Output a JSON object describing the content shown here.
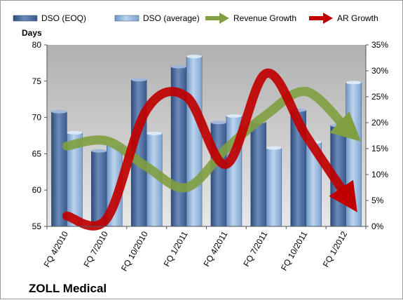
{
  "chart_data": {
    "type": "bar",
    "title": "",
    "caption": "ZOLL Medical",
    "ylabel": "Days",
    "y2label": "",
    "ylim": [
      55,
      80
    ],
    "yticks": [
      "55",
      "60",
      "65",
      "70",
      "75",
      "80"
    ],
    "y2lim": [
      0,
      35
    ],
    "y2ticks": [
      "0%",
      "5%",
      "10%",
      "15%",
      "20%",
      "25%",
      "30%",
      "35%"
    ],
    "categories": [
      "FQ 4/2010",
      "FQ 7/2010",
      "FQ 10/2010",
      "FQ 1/2011",
      "FQ 4/2011",
      "FQ 7/2011",
      "FQ 10/2011",
      "FQ 1/2012"
    ],
    "legend_position": "top",
    "grid": false,
    "series": [
      {
        "name": "DSO (EOQ)",
        "kind": "bar",
        "axis": "left",
        "color": "#4f6f9f",
        "values": [
          70.8,
          65.4,
          75.2,
          77.0,
          69.3,
          69.4,
          71.0,
          68.9
        ]
      },
      {
        "name": "DSO (average)",
        "kind": "bar",
        "axis": "left",
        "color": "#8db1d9",
        "values": [
          67.9,
          66.3,
          67.8,
          78.4,
          70.2,
          65.8,
          66.6,
          74.8
        ]
      },
      {
        "name": "Revenue Growth",
        "kind": "line",
        "axis": "right",
        "color": "#7f9f40",
        "unit": "%",
        "values": [
          15.5,
          16.5,
          11.5,
          7.5,
          15.0,
          21.5,
          26.0,
          19.0
        ]
      },
      {
        "name": "AR Growth",
        "kind": "line",
        "axis": "right",
        "color": "#c00000",
        "unit": "%",
        "values": [
          2.0,
          1.5,
          22.5,
          25.0,
          12.0,
          29.5,
          17.5,
          6.0
        ]
      }
    ]
  }
}
